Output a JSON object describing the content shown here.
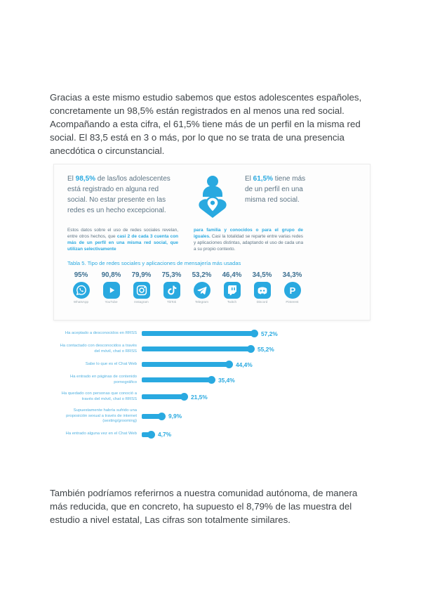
{
  "colors": {
    "accent": "#29a9e0",
    "steel": "#3c6f90",
    "body_text": "#3e4347"
  },
  "page": {
    "intro_paragraph": "Gracias a este mismo estudio sabemos que estos adolescentes españoles, concretamente un 98,5% están registrados en al menos una red social. Acompañando a esta cifra, el 61,5% tiene más de un perfil en la misma red social. El 83,5 está en 3 o más, por lo que no se trata de una presencia anecdótica o circunstancial.",
    "closing_paragraph": "También podríamos referirnos a nuestra comunidad autónoma, de manera más reducida, que en concreto, ha supuesto el 8,79% de las muestra del estudio a nivel estatal, Las cifras son totalmente similares."
  },
  "infographic": {
    "stat_left": {
      "prefix": "El ",
      "value": "98,5%",
      "rest": " de las/los adolescentes está registrado en alguna red social. No estar presente en las redes es un hecho excepcional."
    },
    "stat_right": {
      "prefix": "El ",
      "value": "61,5%",
      "rest": " tiene más de un perfil en una misma red social."
    },
    "note_left": {
      "normal": "Estos datos sobre el uso de redes sociales revelan, entre otros hechos, que ",
      "bold": "casi 2 de cada 3 cuenta con más de un perfil en una misma red social, que utilizan selectivamente"
    },
    "note_right": {
      "bold": "para familia y conocidos o para el grupo de iguales. ",
      "normal": "Casi la totalidad se reparte entre varias redes y aplicaciones distintas, adaptando el uso de cada una a su propio contexto."
    },
    "table_caption": "Tabla 5. Tipo de redes sociales y aplicaciones de mensajería más usadas",
    "networks": [
      {
        "name": "WhatsApp",
        "pct": "95%",
        "icon": "whatsapp-icon",
        "key": "whatsapp"
      },
      {
        "name": "YouTube",
        "pct": "90,8%",
        "icon": "youtube-icon",
        "key": "youtube"
      },
      {
        "name": "Instagram",
        "pct": "79,9%",
        "icon": "instagram-icon",
        "key": "instagram"
      },
      {
        "name": "TikTok",
        "pct": "75,3%",
        "icon": "tiktok-icon",
        "key": "tiktok"
      },
      {
        "name": "Telegram",
        "pct": "53,2%",
        "icon": "telegram-icon",
        "key": "telegram"
      },
      {
        "name": "Twitch",
        "pct": "46,4%",
        "icon": "twitch-icon",
        "key": "twitch"
      },
      {
        "name": "Discord",
        "pct": "34,5%",
        "icon": "discord-icon",
        "key": "discord"
      },
      {
        "name": "Pinterest",
        "pct": "34,3%",
        "icon": "pinterest-icon",
        "key": "pinterest"
      }
    ]
  },
  "chart_data": [
    {
      "type": "bar",
      "title": "Tabla 5. Tipo de redes sociales y aplicaciones de mensajería más usadas",
      "categories": [
        "WhatsApp",
        "YouTube",
        "Instagram",
        "TikTok",
        "Telegram",
        "Twitch",
        "Discord",
        "Pinterest"
      ],
      "values": [
        95,
        90.8,
        79.9,
        75.3,
        53.2,
        46.4,
        34.5,
        34.3
      ],
      "value_labels": [
        "95%",
        "90,8%",
        "79,9%",
        "75,3%",
        "53,2%",
        "46,4%",
        "34,5%",
        "34,3%"
      ],
      "unit": "%",
      "legend": "none"
    },
    {
      "type": "bar",
      "orientation": "horizontal",
      "categories": [
        "Ha aceptado a desconocidos en RRSS",
        "Ha contactado con desconocidos a través del móvil, chat o RRSS",
        "Sabe lo que es el Chat Web",
        "Ha entrado en páginas de contenido pornográfico",
        "Ha quedado con personas que conoció a través del móvil, chat o RRSS",
        "Supuestamente habría sufrido una proposición sexual a través de internet (sexting/grooming)",
        "Ha entrado alguna vez en el Chat Web"
      ],
      "values": [
        57.2,
        55.2,
        44.4,
        35.4,
        21.5,
        9.9,
        4.7
      ],
      "value_labels": [
        "57,2%",
        "55,2%",
        "44,4%",
        "35,4%",
        "21,5%",
        "9,9%",
        "4,7%"
      ],
      "xlim": [
        0,
        60
      ],
      "bar_color": "#29a9e0",
      "grid": false,
      "legend": "none"
    }
  ]
}
